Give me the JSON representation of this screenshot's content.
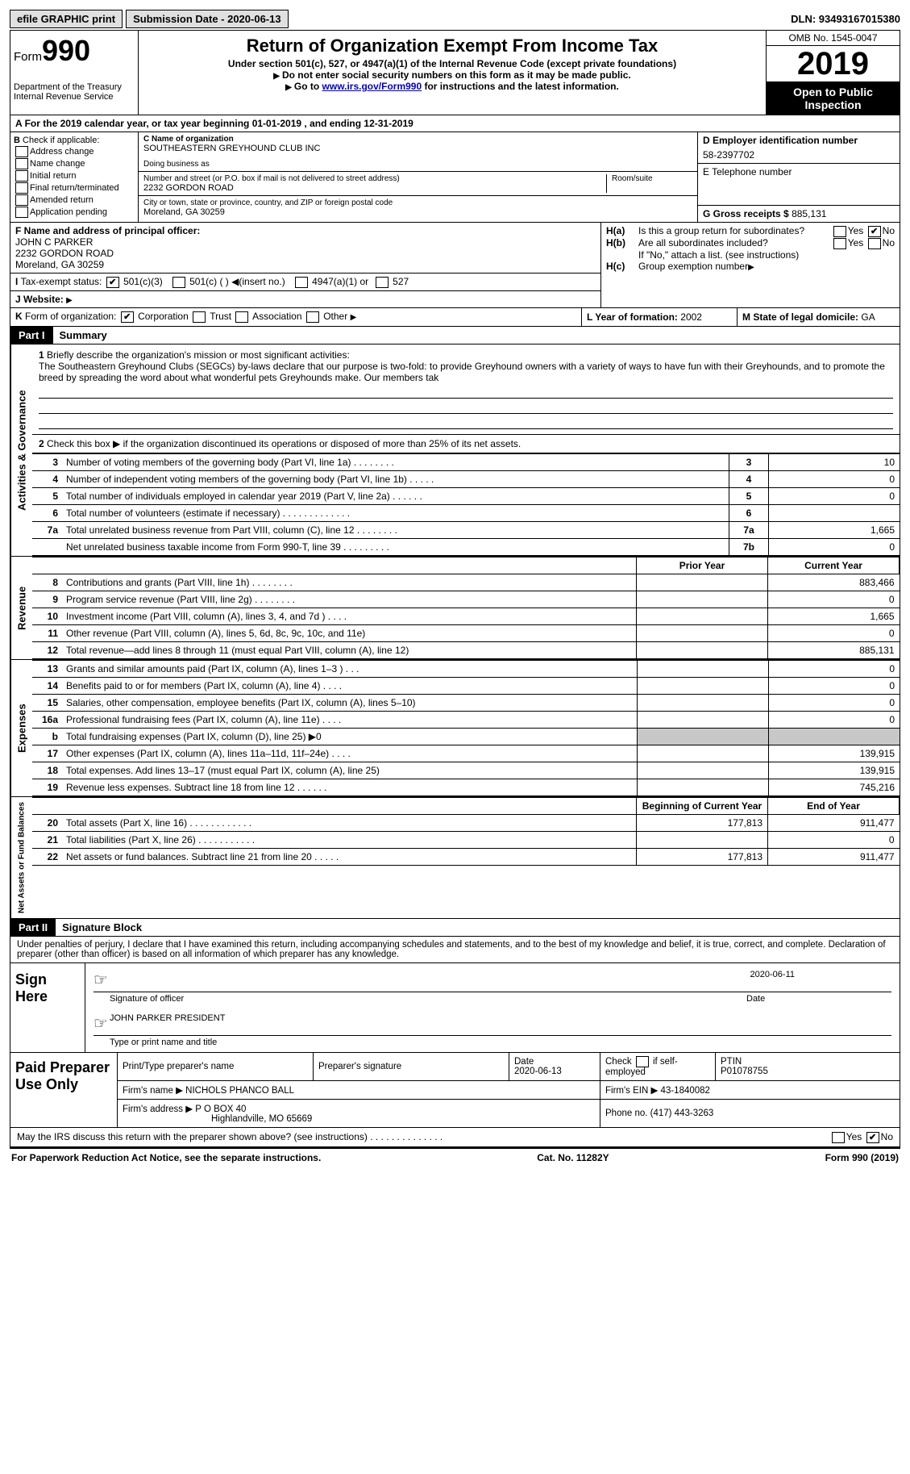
{
  "top": {
    "efile": "efile GRAPHIC print",
    "submission": "Submission Date - 2020-06-13",
    "dln": "DLN: 93493167015380"
  },
  "header": {
    "form_prefix": "Form",
    "form_num": "990",
    "dept": "Department of the Treasury\nInternal Revenue Service",
    "title": "Return of Organization Exempt From Income Tax",
    "subtitle": "Under section 501(c), 527, or 4947(a)(1) of the Internal Revenue Code (except private foundations)",
    "note1": "Do not enter social security numbers on this form as it may be made public.",
    "note2_pre": "Go to ",
    "note2_link": "www.irs.gov/Form990",
    "note2_post": " for instructions and the latest information.",
    "omb": "OMB No. 1545-0047",
    "year": "2019",
    "open": "Open to Public Inspection"
  },
  "a": {
    "text": "For the 2019 calendar year, or tax year beginning 01-01-2019   , and ending 12-31-2019"
  },
  "b": {
    "label": "Check if applicable:",
    "opts": [
      "Address change",
      "Name change",
      "Initial return",
      "Final return/terminated",
      "Amended return",
      "Application pending"
    ]
  },
  "c": {
    "name_label": "C Name of organization",
    "name": "SOUTHEASTERN GREYHOUND CLUB INC",
    "dba_label": "Doing business as",
    "addr_label": "Number and street (or P.O. box if mail is not delivered to street address)",
    "room_label": "Room/suite",
    "addr": "2232 GORDON ROAD",
    "city_label": "City or town, state or province, country, and ZIP or foreign postal code",
    "city": "Moreland, GA  30259"
  },
  "d": {
    "label": "D Employer identification number",
    "val": "58-2397702"
  },
  "e": {
    "label": "E Telephone number",
    "val": ""
  },
  "g": {
    "label": "G Gross receipts $",
    "val": "885,131"
  },
  "f": {
    "label": "F  Name and address of principal officer:",
    "name": "JOHN C PARKER",
    "addr1": "2232 GORDON ROAD",
    "addr2": "Moreland, GA  30259"
  },
  "h": {
    "a": "Is this a group return for subordinates?",
    "b": "Are all subordinates included?",
    "note": "If \"No,\" attach a list. (see instructions)",
    "c": "Group exemption number"
  },
  "i": {
    "label": "Tax-exempt status:",
    "o1": "501(c)(3)",
    "o2": "501(c) (  )",
    "o2b": "(insert no.)",
    "o3": "4947(a)(1) or",
    "o4": "527"
  },
  "j": {
    "label": "Website:"
  },
  "k": {
    "label": "Form of organization:",
    "o1": "Corporation",
    "o2": "Trust",
    "o3": "Association",
    "o4": "Other"
  },
  "l": {
    "label": "L Year of formation:",
    "val": "2002"
  },
  "m": {
    "label": "M State of legal domicile:",
    "val": "GA"
  },
  "part1": {
    "tag": "Part I",
    "title": "Summary",
    "strips": [
      "Activities & Governance",
      "Revenue",
      "Expenses",
      "Net Assets or Fund Balances"
    ],
    "l1": "Briefly describe the organization's mission or most significant activities:",
    "mission": "The Southeastern Greyhound Clubs (SEGCs) by-laws declare that our purpose is two-fold: to provide Greyhound owners with a variety of ways to have fun with their Greyhounds, and to promote the breed by spreading the word about what wonderful pets Greyhounds make. Our members tak",
    "l2": "Check this box ▶      if the organization discontinued its operations or disposed of more than 25% of its net assets.",
    "rows_gov": [
      {
        "n": "3",
        "t": "Number of voting members of the governing body (Part VI, line 1a)  .   .   .   .   .   .   .   .",
        "k": "3",
        "v": "10"
      },
      {
        "n": "4",
        "t": "Number of independent voting members of the governing body (Part VI, line 1b)  .   .   .   .   .",
        "k": "4",
        "v": "0"
      },
      {
        "n": "5",
        "t": "Total number of individuals employed in calendar year 2019 (Part V, line 2a)  .   .   .   .   .   .",
        "k": "5",
        "v": "0"
      },
      {
        "n": "6",
        "t": "Total number of volunteers (estimate if necessary)   .   .   .   .   .   .   .   .   .   .   .   .   .",
        "k": "6",
        "v": ""
      },
      {
        "n": "7a",
        "t": "Total unrelated business revenue from Part VIII, column (C), line 12   .   .   .   .   .   .   .   .",
        "k": "7a",
        "v": "1,665"
      },
      {
        "n": "",
        "t": "Net unrelated business taxable income from Form 990-T, line 39   .   .   .   .   .   .   .   .   .",
        "k": "7b",
        "v": "0"
      }
    ],
    "hdr_prior": "Prior Year",
    "hdr_curr": "Current Year",
    "rows_rev": [
      {
        "n": "8",
        "t": "Contributions and grants (Part VIII, line 1h)   .   .   .   .   .   .   .   .",
        "p": "",
        "c": "883,466"
      },
      {
        "n": "9",
        "t": "Program service revenue (Part VIII, line 2g)   .   .   .   .   .   .   .   .",
        "p": "",
        "c": "0"
      },
      {
        "n": "10",
        "t": "Investment income (Part VIII, column (A), lines 3, 4, and 7d )   .   .   .   .",
        "p": "",
        "c": "1,665"
      },
      {
        "n": "11",
        "t": "Other revenue (Part VIII, column (A), lines 5, 6d, 8c, 9c, 10c, and 11e)",
        "p": "",
        "c": "0"
      },
      {
        "n": "12",
        "t": "Total revenue—add lines 8 through 11 (must equal Part VIII, column (A), line 12)",
        "p": "",
        "c": "885,131"
      }
    ],
    "rows_exp": [
      {
        "n": "13",
        "t": "Grants and similar amounts paid (Part IX, column (A), lines 1–3 )  .   .   .",
        "p": "",
        "c": "0"
      },
      {
        "n": "14",
        "t": "Benefits paid to or for members (Part IX, column (A), line 4)  .   .   .   .",
        "p": "",
        "c": "0"
      },
      {
        "n": "15",
        "t": "Salaries, other compensation, employee benefits (Part IX, column (A), lines 5–10)",
        "p": "",
        "c": "0"
      },
      {
        "n": "16a",
        "t": "Professional fundraising fees (Part IX, column (A), line 11e)  .   .   .   .",
        "p": "",
        "c": "0"
      },
      {
        "n": "b",
        "t": "Total fundraising expenses (Part IX, column (D), line 25) ▶0",
        "p": "shade",
        "c": "shade"
      },
      {
        "n": "17",
        "t": "Other expenses (Part IX, column (A), lines 11a–11d, 11f–24e)  .   .   .   .",
        "p": "",
        "c": "139,915"
      },
      {
        "n": "18",
        "t": "Total expenses. Add lines 13–17 (must equal Part IX, column (A), line 25)",
        "p": "",
        "c": "139,915"
      },
      {
        "n": "19",
        "t": "Revenue less expenses. Subtract line 18 from line 12   .   .   .   .   .   .",
        "p": "",
        "c": "745,216"
      }
    ],
    "hdr_beg": "Beginning of Current Year",
    "hdr_end": "End of Year",
    "rows_net": [
      {
        "n": "20",
        "t": "Total assets (Part X, line 16)   .   .   .   .   .   .   .   .   .   .   .   .",
        "p": "177,813",
        "c": "911,477"
      },
      {
        "n": "21",
        "t": "Total liabilities (Part X, line 26)  .   .   .   .   .   .   .   .   .   .   .",
        "p": "",
        "c": "0"
      },
      {
        "n": "22",
        "t": "Net assets or fund balances. Subtract line 21 from line 20  .   .   .   .   .",
        "p": "177,813",
        "c": "911,477"
      }
    ]
  },
  "part2": {
    "tag": "Part II",
    "title": "Signature Block",
    "decl": "Under penalties of perjury, I declare that I have examined this return, including accompanying schedules and statements, and to the best of my knowledge and belief, it is true, correct, and complete. Declaration of preparer (other than officer) is based on all information of which preparer has any knowledge."
  },
  "sign": {
    "label": "Sign Here",
    "sig_label": "Signature of officer",
    "date": "2020-06-11",
    "date_label": "Date",
    "name": "JOHN PARKER  PRESIDENT",
    "name_label": "Type or print name and title"
  },
  "paid": {
    "label": "Paid Preparer Use Only",
    "h1": "Print/Type preparer's name",
    "h2": "Preparer's signature",
    "h3": "Date",
    "h3v": "2020-06-13",
    "h4": "Check        if self-employed",
    "h5": "PTIN",
    "h5v": "P01078755",
    "firm_label": "Firm's name    ▶",
    "firm": "NICHOLS PHANCO BALL",
    "ein_label": "Firm's EIN ▶",
    "ein": "43-1840082",
    "addr_label": "Firm's address ▶",
    "addr1": "P O BOX 40",
    "addr2": "Highlandville, MO  65669",
    "phone_label": "Phone no.",
    "phone": "(417) 443-3263"
  },
  "discuss": "May the IRS discuss this return with the preparer shown above? (see instructions)   .   .   .   .   .   .   .   .   .   .   .   .   .   .",
  "footer": {
    "l": "For Paperwork Reduction Act Notice, see the separate instructions.",
    "m": "Cat. No. 11282Y",
    "r": "Form 990 (2019)"
  }
}
